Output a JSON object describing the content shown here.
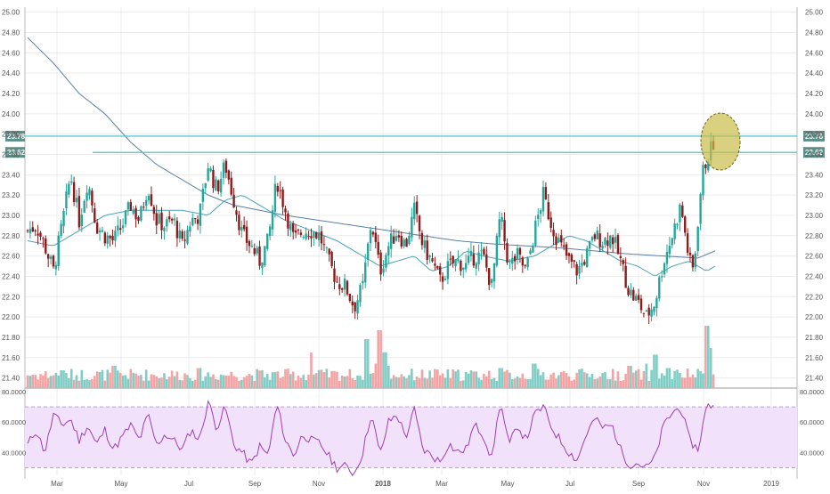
{
  "colors": {
    "up": "#26a69a",
    "down": "#8e1b1b",
    "vol_up": "#7fcdc5",
    "vol_down": "#f3a3a3",
    "ma_long": "#5b7fa6",
    "ma_short": "#4aa3b5",
    "level_line": "#3fbcc4",
    "rsi_line": "#9b3fb5",
    "rsi_band": "#f2e1fb",
    "grid": "#ececec",
    "axis_text": "#555555",
    "price_tag": "#5e8f88",
    "circle": "#c9bd4a"
  },
  "chart_data": {
    "type": "candlestick",
    "price_axis": {
      "range": [
        21.3,
        25.05
      ],
      "ticks": [
        "21.40",
        "21.60",
        "21.80",
        "22.00",
        "22.20",
        "22.40",
        "22.60",
        "22.80",
        "23.00",
        "23.20",
        "23.40",
        "23.60",
        "23.80",
        "24.00",
        "24.20",
        "24.40",
        "24.60",
        "24.80",
        "25.00"
      ]
    },
    "time_axis": {
      "labels": [
        "Mar",
        "May",
        "Jul",
        "Sep",
        "Nov",
        "2018",
        "Mar",
        "May",
        "Jul",
        "Sep",
        "Nov",
        "2019"
      ],
      "emphasized": [
        "2018"
      ]
    },
    "price_tags": [
      "23.78",
      "23.62"
    ],
    "level_lines": [
      23.78,
      23.62
    ],
    "price_anchors": [
      [
        0,
        22.85
      ],
      [
        10,
        22.9
      ],
      [
        20,
        22.7
      ],
      [
        30,
        22.45
      ],
      [
        40,
        22.9
      ],
      [
        50,
        23.4
      ],
      [
        60,
        22.95
      ],
      [
        70,
        23.35
      ],
      [
        80,
        22.9
      ],
      [
        90,
        22.8
      ],
      [
        100,
        22.75
      ],
      [
        110,
        22.9
      ],
      [
        120,
        23.1
      ],
      [
        130,
        22.95
      ],
      [
        140,
        23.3
      ],
      [
        150,
        22.95
      ],
      [
        160,
        22.9
      ],
      [
        170,
        22.95
      ],
      [
        180,
        22.7
      ],
      [
        190,
        22.95
      ],
      [
        200,
        23.0
      ],
      [
        210,
        23.5
      ],
      [
        220,
        23.25
      ],
      [
        230,
        23.5
      ],
      [
        240,
        23.15
      ],
      [
        250,
        22.8
      ],
      [
        260,
        22.7
      ],
      [
        270,
        22.55
      ],
      [
        280,
        22.75
      ],
      [
        290,
        23.35
      ],
      [
        300,
        23.05
      ],
      [
        310,
        22.75
      ],
      [
        320,
        22.85
      ],
      [
        330,
        22.85
      ],
      [
        340,
        22.8
      ],
      [
        350,
        22.55
      ],
      [
        360,
        22.35
      ],
      [
        370,
        22.3
      ],
      [
        380,
        22.1
      ],
      [
        390,
        22.3
      ],
      [
        400,
        22.95
      ],
      [
        410,
        22.45
      ],
      [
        420,
        22.7
      ],
      [
        430,
        22.85
      ],
      [
        440,
        22.7
      ],
      [
        450,
        23.05
      ],
      [
        460,
        22.7
      ],
      [
        470,
        22.55
      ],
      [
        480,
        22.35
      ],
      [
        490,
        22.5
      ],
      [
        500,
        22.55
      ],
      [
        510,
        22.5
      ],
      [
        520,
        22.6
      ],
      [
        530,
        22.6
      ],
      [
        540,
        22.3
      ],
      [
        550,
        23.0
      ],
      [
        560,
        22.5
      ],
      [
        570,
        22.6
      ],
      [
        580,
        22.45
      ],
      [
        590,
        22.85
      ],
      [
        600,
        23.2
      ],
      [
        610,
        22.9
      ],
      [
        620,
        22.7
      ],
      [
        630,
        22.55
      ],
      [
        640,
        22.45
      ],
      [
        650,
        22.6
      ],
      [
        660,
        22.8
      ],
      [
        670,
        22.75
      ],
      [
        680,
        22.8
      ],
      [
        690,
        22.55
      ],
      [
        700,
        22.25
      ],
      [
        710,
        22.15
      ],
      [
        720,
        22.0
      ],
      [
        730,
        22.15
      ],
      [
        740,
        22.55
      ],
      [
        750,
        22.8
      ],
      [
        760,
        23.1
      ],
      [
        770,
        22.55
      ],
      [
        775,
        22.45
      ],
      [
        780,
        22.95
      ],
      [
        785,
        23.4
      ],
      [
        790,
        23.55
      ],
      [
        795,
        23.65
      ],
      [
        800,
        23.75
      ]
    ],
    "ma_long_anchors": [
      [
        0,
        24.75
      ],
      [
        30,
        24.5
      ],
      [
        60,
        24.2
      ],
      [
        90,
        24.0
      ],
      [
        120,
        23.72
      ],
      [
        150,
        23.5
      ],
      [
        180,
        23.35
      ],
      [
        210,
        23.2
      ],
      [
        240,
        23.1
      ],
      [
        270,
        23.05
      ],
      [
        300,
        23.0
      ],
      [
        340,
        22.95
      ],
      [
        380,
        22.9
      ],
      [
        420,
        22.85
      ],
      [
        460,
        22.8
      ],
      [
        500,
        22.75
      ],
      [
        540,
        22.72
      ],
      [
        580,
        22.7
      ],
      [
        620,
        22.68
      ],
      [
        660,
        22.65
      ],
      [
        700,
        22.62
      ],
      [
        740,
        22.6
      ],
      [
        780,
        22.58
      ],
      [
        800,
        22.65
      ]
    ],
    "ma_short_anchors": [
      [
        0,
        22.75
      ],
      [
        30,
        22.7
      ],
      [
        60,
        22.85
      ],
      [
        90,
        23.0
      ],
      [
        120,
        23.05
      ],
      [
        150,
        23.05
      ],
      [
        180,
        23.05
      ],
      [
        210,
        23.0
      ],
      [
        230,
        23.15
      ],
      [
        250,
        23.2
      ],
      [
        270,
        23.1
      ],
      [
        300,
        22.95
      ],
      [
        330,
        22.85
      ],
      [
        360,
        22.75
      ],
      [
        390,
        22.6
      ],
      [
        410,
        22.5
      ],
      [
        430,
        22.55
      ],
      [
        450,
        22.6
      ],
      [
        470,
        22.45
      ],
      [
        490,
        22.5
      ],
      [
        510,
        22.65
      ],
      [
        530,
        22.6
      ],
      [
        560,
        22.55
      ],
      [
        590,
        22.6
      ],
      [
        610,
        22.7
      ],
      [
        630,
        22.8
      ],
      [
        650,
        22.75
      ],
      [
        670,
        22.65
      ],
      [
        690,
        22.55
      ],
      [
        710,
        22.5
      ],
      [
        730,
        22.4
      ],
      [
        750,
        22.5
      ],
      [
        770,
        22.55
      ],
      [
        790,
        22.45
      ],
      [
        800,
        22.5
      ]
    ],
    "volume_spikes": [
      [
        40,
        0.4
      ],
      [
        100,
        0.5
      ],
      [
        200,
        0.45
      ],
      [
        330,
        0.8
      ],
      [
        395,
        1.1
      ],
      [
        405,
        0.55
      ],
      [
        410,
        1.3
      ],
      [
        415,
        0.8
      ],
      [
        420,
        0.5
      ],
      [
        550,
        0.45
      ],
      [
        590,
        0.55
      ],
      [
        700,
        0.5
      ],
      [
        720,
        0.55
      ],
      [
        730,
        0.75
      ],
      [
        745,
        0.45
      ],
      [
        790,
        1.4
      ],
      [
        795,
        0.9
      ]
    ],
    "rsi": {
      "ticks": [
        "40.0000",
        "60.0000",
        "80.0000"
      ],
      "upper_band": 70,
      "lower_band": 30,
      "range": [
        25,
        80
      ],
      "anchors": [
        [
          0,
          45
        ],
        [
          10,
          55
        ],
        [
          20,
          40
        ],
        [
          30,
          65
        ],
        [
          40,
          58
        ],
        [
          50,
          62
        ],
        [
          60,
          48
        ],
        [
          70,
          58
        ],
        [
          80,
          45
        ],
        [
          90,
          55
        ],
        [
          100,
          42
        ],
        [
          110,
          50
        ],
        [
          120,
          58
        ],
        [
          130,
          48
        ],
        [
          140,
          65
        ],
        [
          150,
          45
        ],
        [
          160,
          52
        ],
        [
          170,
          48
        ],
        [
          180,
          42
        ],
        [
          190,
          55
        ],
        [
          200,
          48
        ],
        [
          210,
          74
        ],
        [
          220,
          56
        ],
        [
          230,
          70
        ],
        [
          240,
          45
        ],
        [
          250,
          40
        ],
        [
          260,
          32
        ],
        [
          270,
          44
        ],
        [
          280,
          38
        ],
        [
          290,
          72
        ],
        [
          300,
          48
        ],
        [
          310,
          38
        ],
        [
          320,
          52
        ],
        [
          330,
          48
        ],
        [
          340,
          46
        ],
        [
          350,
          38
        ],
        [
          360,
          30
        ],
        [
          370,
          31
        ],
        [
          380,
          26
        ],
        [
          390,
          40
        ],
        [
          400,
          66
        ],
        [
          410,
          38
        ],
        [
          420,
          60
        ],
        [
          430,
          65
        ],
        [
          440,
          50
        ],
        [
          450,
          68
        ],
        [
          460,
          42
        ],
        [
          470,
          38
        ],
        [
          480,
          34
        ],
        [
          490,
          46
        ],
        [
          500,
          40
        ],
        [
          510,
          42
        ],
        [
          520,
          58
        ],
        [
          530,
          52
        ],
        [
          540,
          36
        ],
        [
          550,
          74
        ],
        [
          560,
          44
        ],
        [
          570,
          58
        ],
        [
          580,
          48
        ],
        [
          590,
          65
        ],
        [
          600,
          70
        ],
        [
          610,
          56
        ],
        [
          620,
          48
        ],
        [
          630,
          40
        ],
        [
          640,
          35
        ],
        [
          650,
          52
        ],
        [
          660,
          62
        ],
        [
          670,
          56
        ],
        [
          680,
          58
        ],
        [
          690,
          42
        ],
        [
          700,
          32
        ],
        [
          710,
          33
        ],
        [
          720,
          30
        ],
        [
          730,
          36
        ],
        [
          740,
          58
        ],
        [
          750,
          66
        ],
        [
          760,
          70
        ],
        [
          770,
          48
        ],
        [
          780,
          42
        ],
        [
          790,
          70
        ],
        [
          800,
          72
        ]
      ]
    }
  }
}
